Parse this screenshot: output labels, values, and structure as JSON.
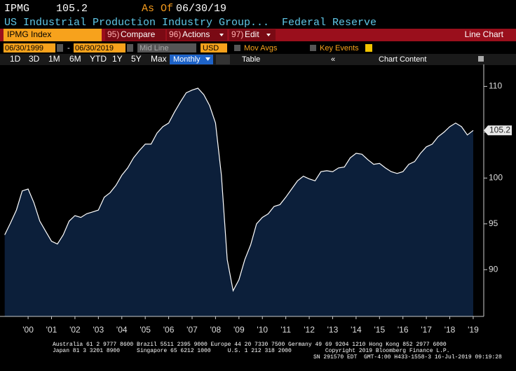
{
  "header": {
    "ticker": "IPMG",
    "price": "105.2",
    "as_of_label": "As Of",
    "as_of_date": "06/30/19",
    "description": "US Industrial Production Industry Group...",
    "source": "Federal Reserve"
  },
  "toolbar": {
    "security": "IPMG Index",
    "menu": [
      {
        "num": "95)",
        "label": "Compare"
      },
      {
        "num": "96)",
        "label": "Actions"
      },
      {
        "num": "97)",
        "label": "Edit"
      }
    ],
    "chart_type": "Line Chart",
    "start_date": "06/30/1999",
    "dash": "-",
    "end_date": "06/30/2019",
    "price_type": "Mid Line",
    "currency": "USD",
    "mov_avgs": "Mov Avgs",
    "key_events": "Key Events",
    "periods": [
      "1D",
      "3D",
      "1M",
      "6M",
      "YTD",
      "1Y",
      "5Y",
      "Max"
    ],
    "frequency": "Monthly",
    "table": "Table",
    "chart_content": "Chart Content"
  },
  "chart_data": {
    "type": "area",
    "color": "#ffffff",
    "fill": "#0c1f3a",
    "x": [
      1999.5,
      1999.75,
      2000.0,
      2000.25,
      2000.5,
      2000.75,
      2001.0,
      2001.25,
      2001.5,
      2001.75,
      2002.0,
      2002.25,
      2002.5,
      2002.75,
      2003.0,
      2003.25,
      2003.5,
      2003.75,
      2004.0,
      2004.25,
      2004.5,
      2004.75,
      2005.0,
      2005.25,
      2005.5,
      2005.75,
      2006.0,
      2006.25,
      2006.5,
      2006.75,
      2007.0,
      2007.25,
      2007.5,
      2007.75,
      2008.0,
      2008.25,
      2008.5,
      2008.75,
      2009.0,
      2009.25,
      2009.5,
      2009.75,
      2010.0,
      2010.25,
      2010.5,
      2010.75,
      2011.0,
      2011.25,
      2011.5,
      2011.75,
      2012.0,
      2012.25,
      2012.5,
      2012.75,
      2013.0,
      2013.25,
      2013.5,
      2013.75,
      2014.0,
      2014.25,
      2014.5,
      2014.75,
      2015.0,
      2015.25,
      2015.5,
      2015.75,
      2016.0,
      2016.25,
      2016.5,
      2016.75,
      2017.0,
      2017.25,
      2017.5,
      2017.75,
      2018.0,
      2018.25,
      2018.5,
      2018.75,
      2019.0,
      2019.25,
      2019.5
    ],
    "values": [
      93.8,
      95.1,
      96.5,
      98.6,
      98.8,
      97.3,
      95.3,
      94.2,
      93.1,
      92.8,
      93.8,
      95.3,
      95.9,
      95.7,
      96.1,
      96.3,
      96.5,
      97.9,
      98.4,
      99.2,
      100.3,
      101.1,
      102.2,
      103.0,
      103.7,
      103.7,
      104.9,
      105.6,
      106.0,
      107.2,
      108.3,
      109.3,
      109.6,
      109.8,
      109.1,
      107.9,
      106.0,
      100.3,
      91.1,
      87.7,
      88.9,
      91.1,
      92.7,
      95.0,
      95.7,
      96.1,
      96.9,
      97.1,
      97.9,
      98.8,
      99.7,
      100.2,
      99.9,
      99.7,
      100.7,
      100.8,
      100.7,
      101.1,
      101.2,
      102.2,
      102.7,
      102.6,
      102.0,
      101.5,
      101.6,
      101.1,
      100.7,
      100.5,
      100.7,
      101.5,
      101.8,
      102.7,
      103.4,
      103.7,
      104.5,
      105.0,
      105.6,
      106.0,
      105.6,
      104.7,
      105.2
    ],
    "last_value": 105.2,
    "xlim": [
      1999.45,
      2019.95
    ],
    "ylim": [
      84.9,
      112.4
    ],
    "xticks": [
      {
        "value": 2000.5,
        "label": "'00"
      },
      {
        "value": 2001.5,
        "label": "'01"
      },
      {
        "value": 2002.5,
        "label": "'02"
      },
      {
        "value": 2003.5,
        "label": "'03"
      },
      {
        "value": 2004.5,
        "label": "'04"
      },
      {
        "value": 2005.5,
        "label": "'05"
      },
      {
        "value": 2006.5,
        "label": "'06"
      },
      {
        "value": 2007.5,
        "label": "'07"
      },
      {
        "value": 2008.5,
        "label": "'08"
      },
      {
        "value": 2009.5,
        "label": "'09"
      },
      {
        "value": 2010.5,
        "label": "'10"
      },
      {
        "value": 2011.5,
        "label": "'11"
      },
      {
        "value": 2012.5,
        "label": "'12"
      },
      {
        "value": 2013.5,
        "label": "'13"
      },
      {
        "value": 2014.5,
        "label": "'14"
      },
      {
        "value": 2015.5,
        "label": "'15"
      },
      {
        "value": 2016.5,
        "label": "'16"
      },
      {
        "value": 2017.5,
        "label": "'17"
      },
      {
        "value": 2018.5,
        "label": "'18"
      },
      {
        "value": 2019.5,
        "label": "'19"
      }
    ],
    "yticks": [
      90,
      95,
      100,
      105,
      110
    ]
  },
  "footer": {
    "line1": "Australia 61 2 9777 8600 Brazil 5511 2395 9000 Europe 44 20 7330 7500 Germany 49 69 9204 1210 Hong Kong 852 2977 6000",
    "line2": "Japan 81 3 3201 8900     Singapore 65 6212 1000     U.S. 1 212 318 2000          Copyright 2019 Bloomberg Finance L.P.",
    "line3": "SN 291570 EDT  GMT-4:00 H433-1558-3 16-Jul-2019 09:19:28"
  }
}
